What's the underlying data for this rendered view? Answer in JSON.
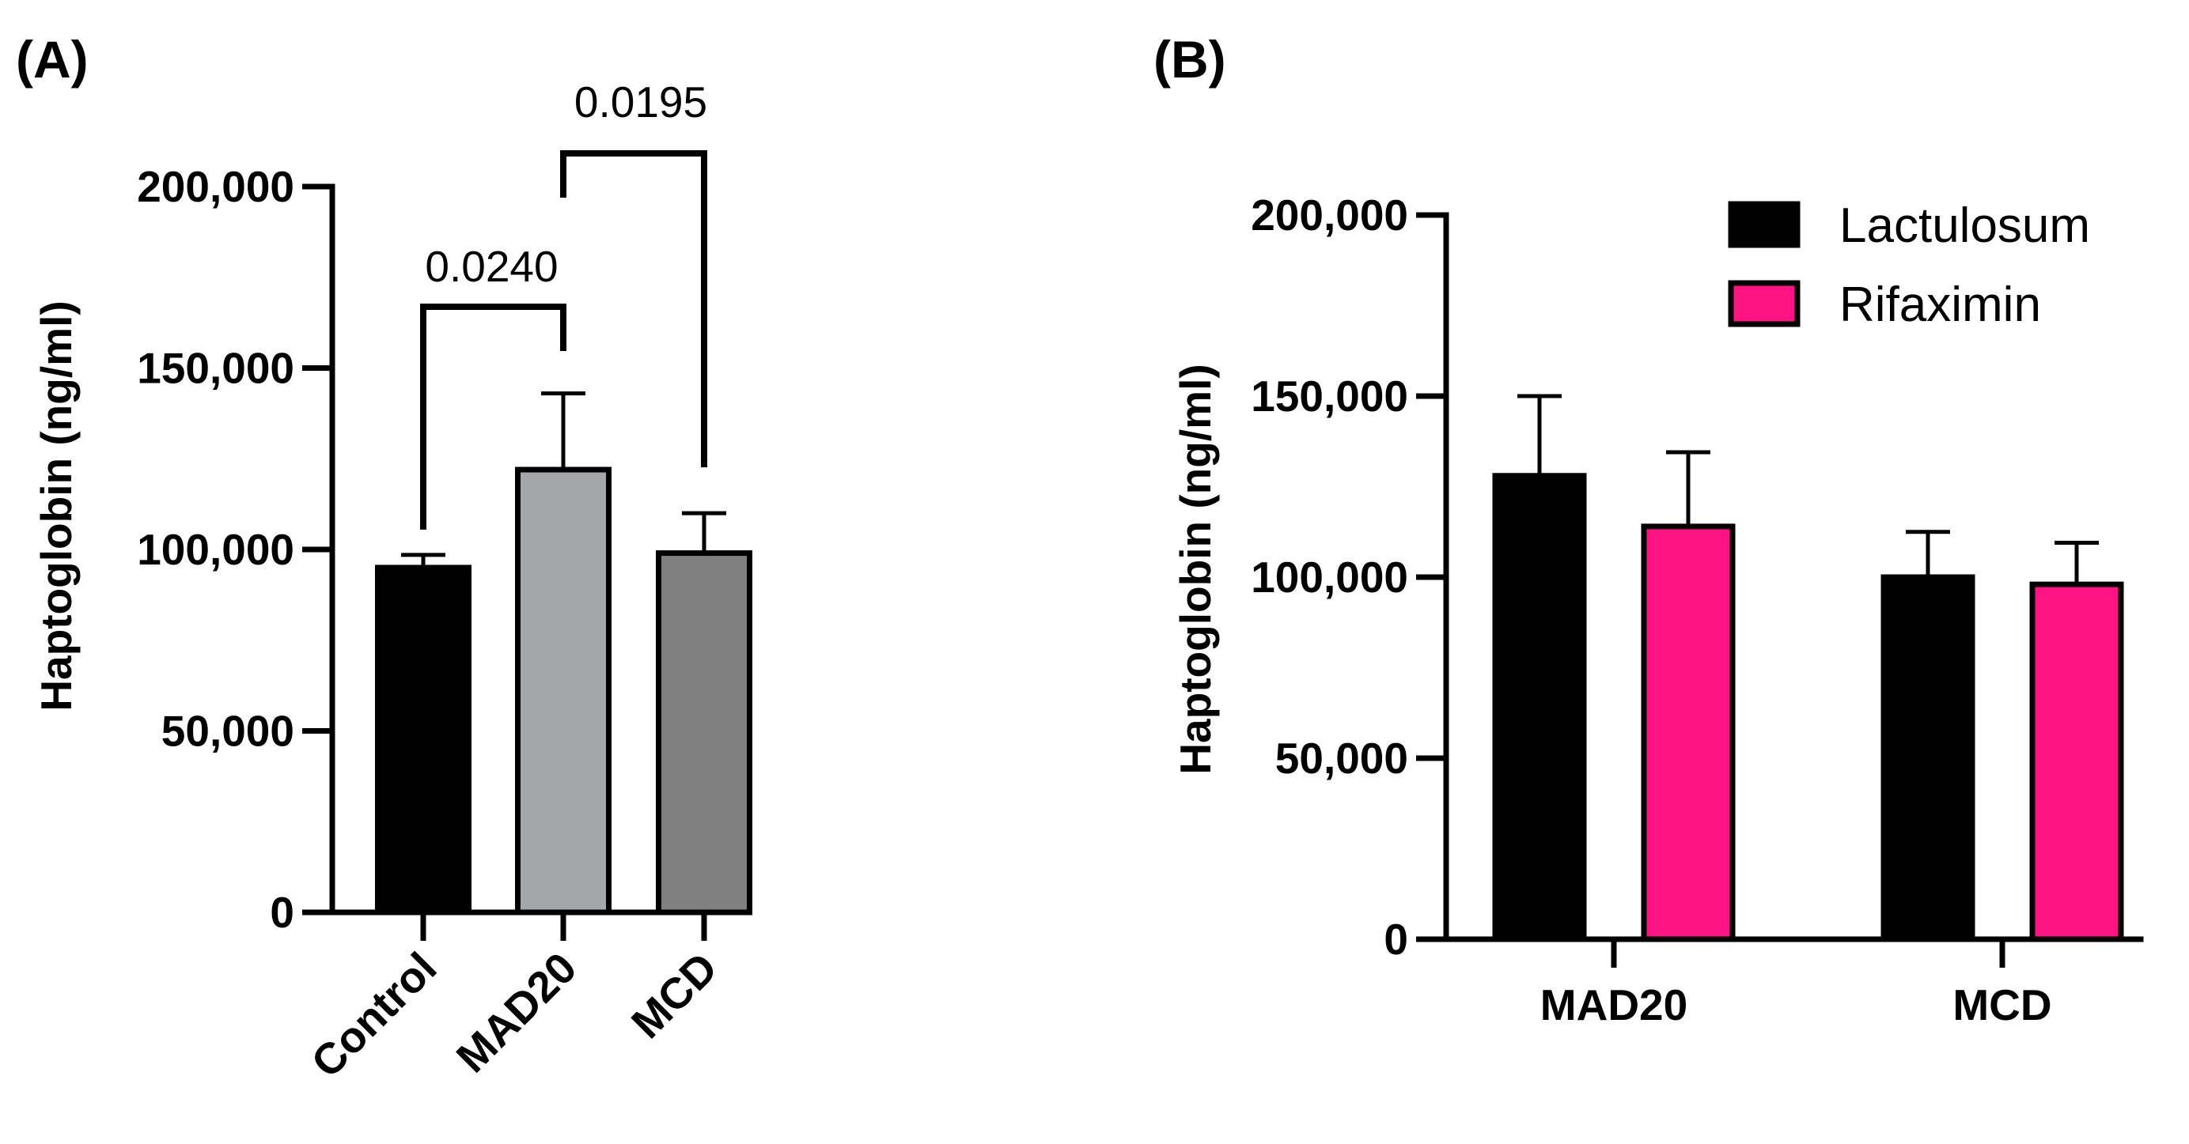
{
  "chart_data": [
    {
      "panel_label": "(A)",
      "type": "bar",
      "ylabel": "Haptoglobin (ng/ml)",
      "xlabel": "",
      "ylim": [
        0,
        200000
      ],
      "yticks": [
        0,
        50000,
        100000,
        150000,
        200000
      ],
      "ytick_labels": [
        "0",
        "50,000",
        "100,000",
        "150,000",
        "200,000"
      ],
      "categories": [
        "Control",
        "MAD20",
        "MCD"
      ],
      "values": [
        95000,
        122000,
        99000
      ],
      "error_upper": [
        98500,
        143000,
        110000
      ],
      "bar_colors": [
        "#000000",
        "#a5a6aa",
        "#808080"
      ],
      "annotations": [
        {
          "from": "Control",
          "to": "MAD20",
          "label": "0.0240"
        },
        {
          "from": "MAD20",
          "to": "MCD",
          "label": "0.0195"
        }
      ]
    },
    {
      "panel_label": "(B)",
      "type": "bar",
      "ylabel": "Haptoglobin (ng/ml)",
      "xlabel": "",
      "ylim": [
        0,
        200000
      ],
      "yticks": [
        0,
        50000,
        100000,
        150000,
        200000
      ],
      "ytick_labels": [
        "0",
        "50,000",
        "100,000",
        "150,000",
        "200,000"
      ],
      "categories": [
        "MAD20",
        "MCD"
      ],
      "series": [
        {
          "name": "Lactulosum",
          "color": "#000000",
          "values": [
            128000,
            100000
          ],
          "error_upper": [
            150000,
            112500
          ]
        },
        {
          "name": "Rifaximin",
          "color": "#ff1284",
          "values": [
            114000,
            98000
          ],
          "error_upper": [
            134500,
            109500
          ]
        }
      ],
      "legend_position": "top-right"
    }
  ]
}
